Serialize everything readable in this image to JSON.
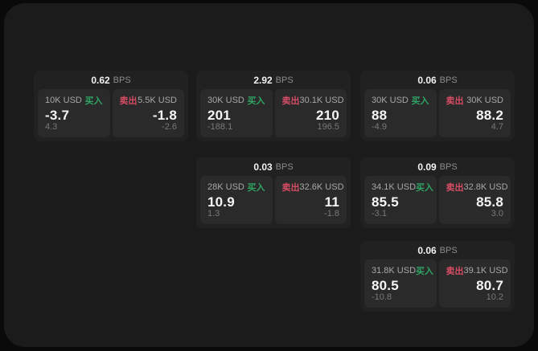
{
  "labels": {
    "buy": "买入",
    "sell": "卖出",
    "bps_unit": "BPS"
  },
  "colors": {
    "buy": "#2fa463",
    "sell": "#d64d63"
  },
  "cards": [
    {
      "row": 0,
      "col": 0,
      "bps": "0.62",
      "buy": {
        "amount": "10K USD",
        "price": "-3.7",
        "delta": "4.3"
      },
      "sell": {
        "amount": "5.5K USD",
        "price": "-1.8",
        "delta": "-2.6"
      }
    },
    {
      "row": 0,
      "col": 1,
      "bps": "2.92",
      "buy": {
        "amount": "30K USD",
        "price": "201",
        "delta": "-188.1"
      },
      "sell": {
        "amount": "30.1K USD",
        "price": "210",
        "delta": "196.5"
      }
    },
    {
      "row": 0,
      "col": 2,
      "bps": "0.06",
      "buy": {
        "amount": "30K USD",
        "price": "88",
        "delta": "-4.9"
      },
      "sell": {
        "amount": "30K USD",
        "price": "88.2",
        "delta": "4.7"
      }
    },
    {
      "row": 1,
      "col": 1,
      "bps": "0.03",
      "buy": {
        "amount": "28K USD",
        "price": "10.9",
        "delta": "1.3"
      },
      "sell": {
        "amount": "32.6K USD",
        "price": "11",
        "delta": "-1.8"
      }
    },
    {
      "row": 1,
      "col": 2,
      "bps": "0.09",
      "buy": {
        "amount": "34.1K USD",
        "price": "85.5",
        "delta": "-3.1"
      },
      "sell": {
        "amount": "32.8K USD",
        "price": "85.8",
        "delta": "3.0"
      }
    },
    {
      "row": 2,
      "col": 2,
      "bps": "0.06",
      "buy": {
        "amount": "31.8K USD",
        "price": "80.5",
        "delta": "-10.8"
      },
      "sell": {
        "amount": "39.1K USD",
        "price": "80.7",
        "delta": "10.2"
      }
    }
  ]
}
